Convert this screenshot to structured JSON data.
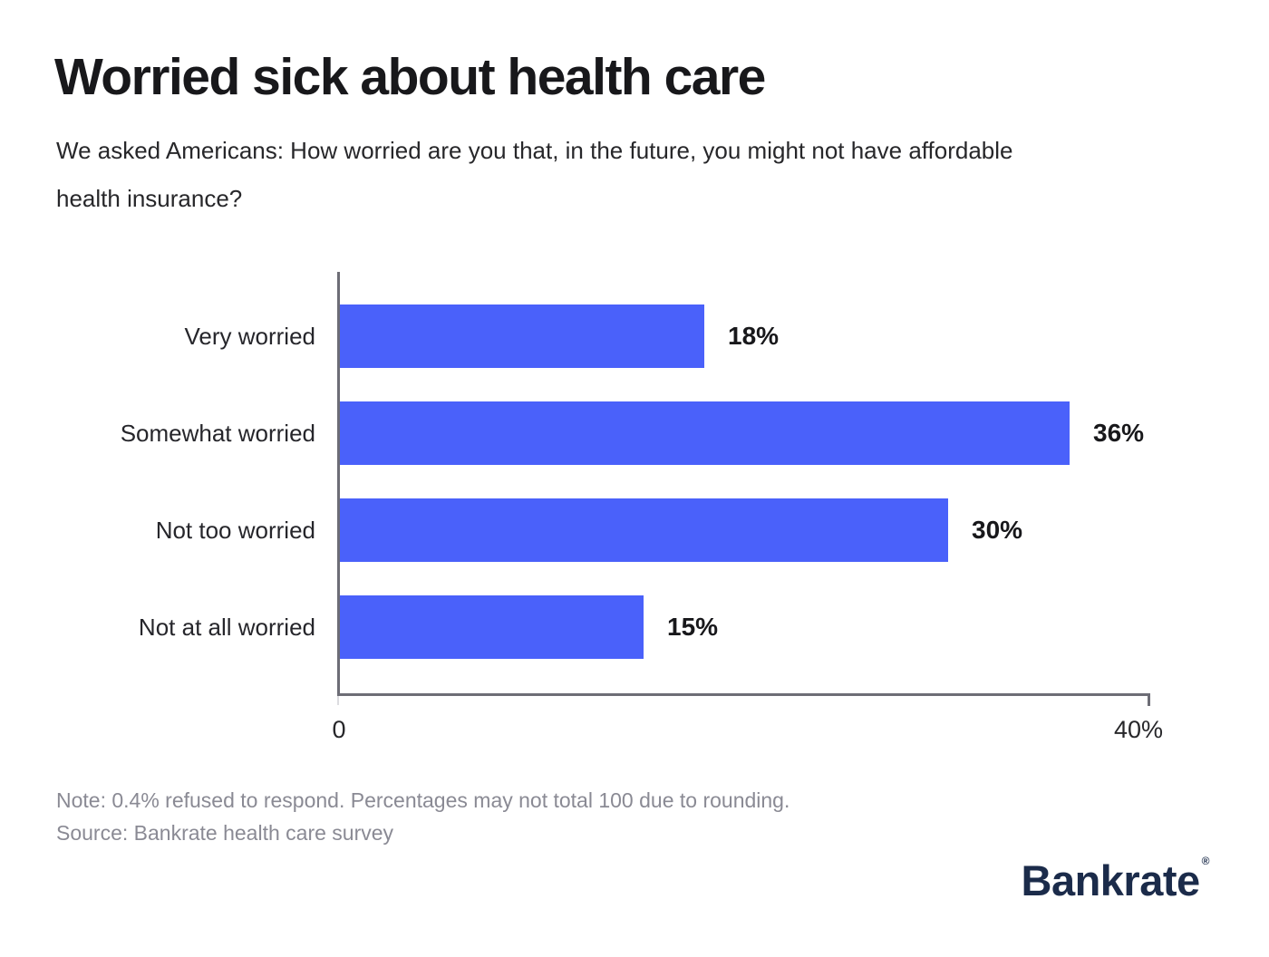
{
  "header": {
    "title": "Worried sick about health care",
    "subtitle": "We asked Americans: How worried are you that, in the future, you might not have affordable health insurance?"
  },
  "chart_data": {
    "type": "bar",
    "orientation": "horizontal",
    "categories": [
      "Very worried",
      "Somewhat worried",
      "Not too worried",
      "Not at all worried"
    ],
    "values": [
      18,
      36,
      30,
      15
    ],
    "value_labels": [
      "18%",
      "36%",
      "30%",
      "15%"
    ],
    "xlim": [
      0,
      40
    ],
    "x_ticks": [
      "0",
      "40%"
    ],
    "bar_color": "#4a61fa",
    "axis_color": "#6d6d76",
    "grid": false,
    "legend": false
  },
  "footer": {
    "note": "Note: 0.4% refused to respond. Percentages may not total 100 due to rounding.",
    "source": "Source: Bankrate health care survey",
    "brand": "Bankrate",
    "brand_mark": "®",
    "brand_color": "#1b2b4a"
  }
}
